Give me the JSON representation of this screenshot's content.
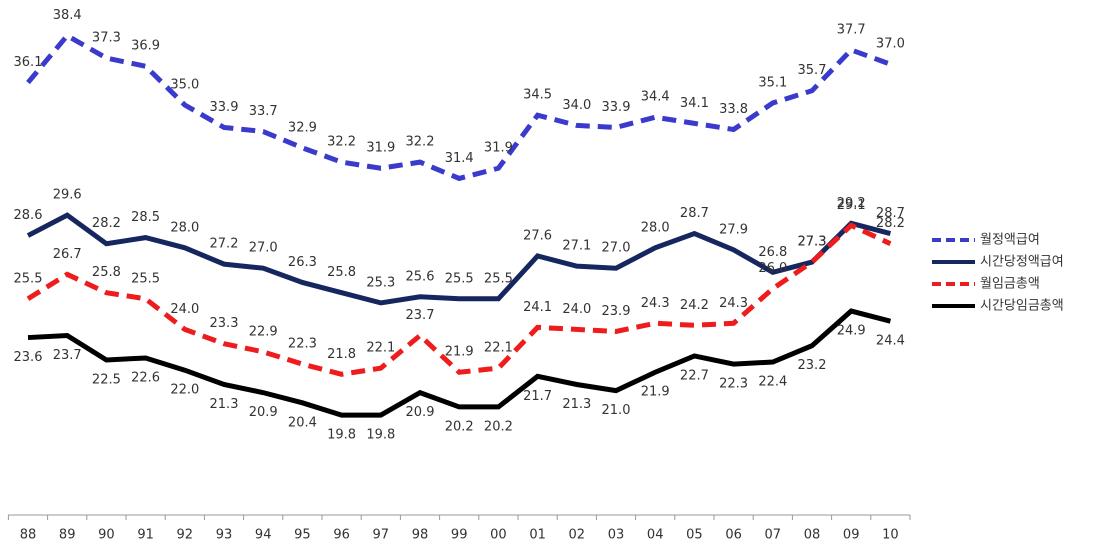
{
  "chart_data": {
    "type": "line",
    "categories": [
      "88",
      "89",
      "90",
      "91",
      "92",
      "93",
      "94",
      "95",
      "96",
      "97",
      "98",
      "99",
      "00",
      "01",
      "02",
      "03",
      "04",
      "05",
      "06",
      "07",
      "08",
      "09",
      "10"
    ],
    "ylim": [
      15,
      40
    ],
    "legend": "right",
    "series": [
      {
        "name": "월정액급여",
        "color": "#3a3acc",
        "dash": true,
        "values": [
          36.1,
          38.4,
          37.3,
          36.9,
          35.0,
          33.9,
          33.7,
          32.9,
          32.2,
          31.9,
          32.2,
          31.4,
          31.9,
          34.5,
          34.0,
          33.9,
          34.4,
          34.1,
          33.8,
          35.1,
          35.7,
          37.7,
          37.0
        ],
        "value_labels": [
          "36.1",
          "38.4",
          "37.3",
          "36.9",
          "35.0",
          "33.9",
          "33.7",
          "32.9",
          "32.2",
          "31.9",
          "32.2",
          "31.4",
          "31.9",
          "34.5",
          "34.0",
          "33.9",
          "34.4",
          "34.1",
          "33.8",
          "35.1",
          "35.7",
          "37.7",
          "37.0"
        ]
      },
      {
        "name": "시간당정액급여",
        "color": "#16275f",
        "dash": false,
        "values": [
          28.6,
          29.6,
          28.2,
          28.5,
          28.0,
          27.2,
          27.0,
          26.3,
          25.8,
          25.3,
          25.6,
          25.5,
          25.5,
          27.6,
          27.1,
          27.0,
          28.0,
          28.7,
          27.9,
          26.8,
          27.3,
          29.2,
          28.7
        ],
        "value_labels": [
          "28.6",
          "29.6",
          "28.2",
          "28.5",
          "28.0",
          "27.2",
          "27.0",
          "26.3",
          "25.8",
          "25.3",
          "25.6",
          "25.5",
          "25.5",
          "27.6",
          "27.1",
          "27.0",
          "28.0",
          "28.7",
          "27.9",
          "26.8",
          "27.3",
          "29.2",
          "28.7"
        ]
      },
      {
        "name": "월임금총액",
        "color": "#ee1c1c",
        "dash": true,
        "values": [
          25.5,
          26.7,
          25.8,
          25.5,
          24.0,
          23.3,
          22.9,
          22.3,
          21.8,
          22.1,
          23.7,
          21.9,
          22.1,
          24.1,
          24.0,
          23.9,
          24.3,
          24.2,
          24.3,
          26.0,
          27.3,
          29.1,
          28.2
        ],
        "value_labels": [
          "25.5",
          "26.7",
          "25.8",
          "25.5",
          "24.0",
          "23.3",
          "22.9",
          "22.3",
          "21.8",
          "22.1",
          "23.7",
          "21.9",
          "22.1",
          "24.1",
          "24.0",
          "23.9",
          "24.3",
          "24.2",
          "24.3",
          "26.0",
          "27.3",
          "29.1",
          "28.2"
        ]
      },
      {
        "name": "시간당임금총액",
        "color": "#000000",
        "dash": false,
        "values": [
          23.6,
          23.7,
          22.5,
          22.6,
          22.0,
          21.3,
          20.9,
          20.4,
          19.8,
          19.8,
          20.9,
          20.2,
          20.2,
          21.7,
          21.3,
          21.0,
          21.9,
          22.7,
          22.3,
          22.4,
          23.2,
          24.9,
          24.4
        ],
        "value_labels": [
          "23.6",
          "23.7",
          "22.5",
          "22.6",
          "22.0",
          "21.3",
          "20.9",
          "20.4",
          "19.8",
          "19.8",
          "20.9",
          "20.2",
          "20.2",
          "21.7",
          "21.3",
          "21.0",
          "21.9",
          "22.7",
          "22.3",
          "22.4",
          "23.2",
          "24.9",
          "24.4"
        ]
      }
    ]
  }
}
